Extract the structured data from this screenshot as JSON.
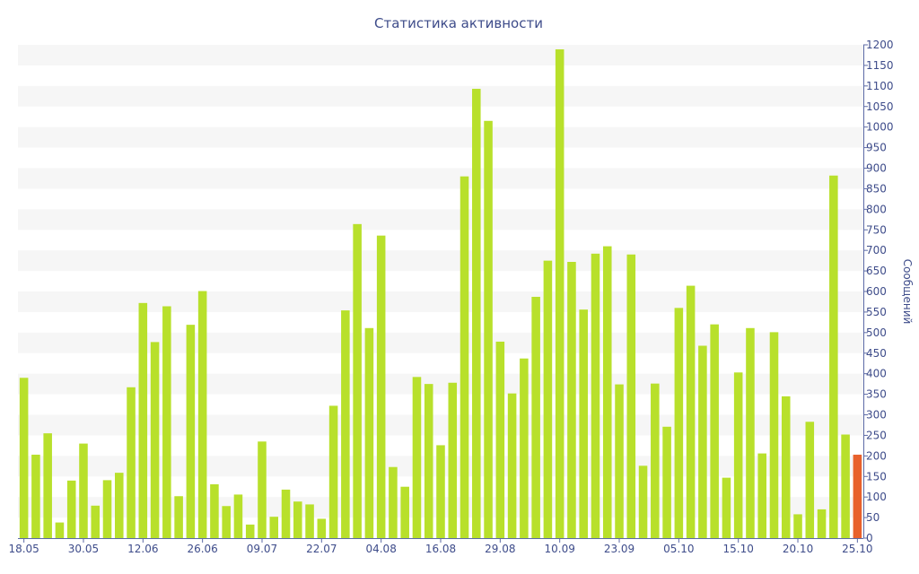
{
  "chart_data": {
    "type": "bar",
    "title": "Статистика активности",
    "ylabel": "Сообщений",
    "xlabel": "",
    "ylim": [
      0,
      1200
    ],
    "y_ticks": [
      0,
      50,
      100,
      150,
      200,
      250,
      300,
      350,
      400,
      450,
      500,
      550,
      600,
      650,
      700,
      750,
      800,
      850,
      900,
      950,
      1000,
      1050,
      1100,
      1150,
      1200
    ],
    "y_axis_position": "right",
    "grid": "alternating horizontal bands",
    "x_tick_labels": [
      {
        "index": 0,
        "label": "18.05"
      },
      {
        "index": 5,
        "label": "30.05"
      },
      {
        "index": 10,
        "label": "12.06"
      },
      {
        "index": 15,
        "label": "26.06"
      },
      {
        "index": 20,
        "label": "09.07"
      },
      {
        "index": 25,
        "label": "22.07"
      },
      {
        "index": 30,
        "label": "04.08"
      },
      {
        "index": 35,
        "label": "16.08"
      },
      {
        "index": 40,
        "label": "29.08"
      },
      {
        "index": 45,
        "label": "10.09"
      },
      {
        "index": 50,
        "label": "23.09"
      },
      {
        "index": 55,
        "label": "05.10"
      },
      {
        "index": 60,
        "label": "15.10"
      },
      {
        "index": 65,
        "label": "20.10"
      },
      {
        "index": 70,
        "label": "25.10"
      }
    ],
    "values": [
      390,
      203,
      255,
      38,
      140,
      230,
      79,
      141,
      159,
      367,
      572,
      477,
      564,
      102,
      519,
      601,
      131,
      78,
      106,
      33,
      235,
      52,
      118,
      89,
      82,
      47,
      322,
      554,
      764,
      511,
      736,
      173,
      125,
      392,
      375,
      226,
      378,
      880,
      1093,
      1015,
      478,
      352,
      437,
      587,
      675,
      1189,
      672,
      556,
      692,
      710,
      374,
      690,
      176,
      376,
      271,
      560,
      614,
      468,
      520,
      147,
      403,
      511,
      206,
      501,
      345,
      58,
      283,
      70,
      882,
      252,
      203
    ],
    "highlight_index": 70,
    "colors": {
      "bar": "#b8e02b",
      "highlight_bar": "#e8612c",
      "band": "#f6f6f6",
      "axis_text": "#3e4c8a",
      "axis_line": "#5c6aa6"
    }
  }
}
